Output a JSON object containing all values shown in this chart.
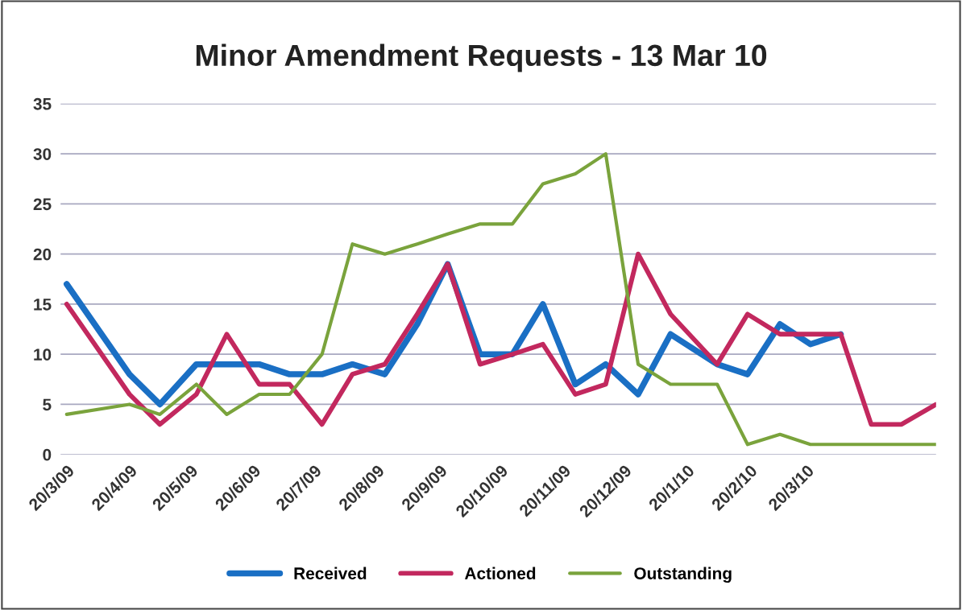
{
  "chart_data": {
    "type": "line",
    "title": "Minor Amendment Requests - 13 Mar 10",
    "x": [
      "2009-03-20",
      "2009-04-20",
      "2009-05-05",
      "2009-05-23",
      "2009-06-07",
      "2009-06-23",
      "2009-07-08",
      "2009-07-24",
      "2009-08-08",
      "2009-08-24",
      "2009-09-09",
      "2009-09-24",
      "2009-10-10",
      "2009-10-26",
      "2009-11-10",
      "2009-11-26",
      "2009-12-11",
      "2009-12-27",
      "2010-01-12",
      "2010-02-04",
      "2010-02-19",
      "2010-03-07",
      "2010-03-22",
      "2010-04-06",
      "2010-04-21",
      "2010-05-06",
      "2010-05-23"
    ],
    "series": [
      {
        "name": "Received",
        "color": "#1a6fc4",
        "values": [
          17,
          8,
          5,
          9,
          9,
          9,
          8,
          8,
          9,
          8,
          13,
          19,
          10,
          10,
          15,
          7,
          9,
          6,
          12,
          9,
          8,
          13,
          11,
          12,
          null,
          null,
          null
        ]
      },
      {
        "name": "Actioned",
        "color": "#c2285e",
        "values": [
          15,
          6,
          3,
          6,
          12,
          7,
          7,
          3,
          8,
          9,
          14,
          19,
          9,
          10,
          11,
          6,
          7,
          20,
          14,
          9,
          14,
          12,
          12,
          12,
          3,
          3,
          5
        ]
      },
      {
        "name": "Outstanding",
        "color": "#7aa33c",
        "values": [
          4,
          5,
          4,
          7,
          4,
          6,
          6,
          10,
          21,
          20,
          21,
          22,
          23,
          23,
          27,
          28,
          30,
          9,
          7,
          7,
          1,
          2,
          1,
          1,
          1,
          1,
          1
        ]
      }
    ],
    "xlim": [
      "2009-03-17",
      "2010-05-23"
    ],
    "xticks": [
      {
        "value": "2009-03-20",
        "label": "20/3/09"
      },
      {
        "value": "2009-04-20",
        "label": "20/4/09"
      },
      {
        "value": "2009-05-20",
        "label": "20/5/09"
      },
      {
        "value": "2009-06-20",
        "label": "20/6/09"
      },
      {
        "value": "2009-07-20",
        "label": "20/7/09"
      },
      {
        "value": "2009-08-20",
        "label": "20/8/09"
      },
      {
        "value": "2009-09-20",
        "label": "20/9/09"
      },
      {
        "value": "2009-10-20",
        "label": "20/10/09"
      },
      {
        "value": "2009-11-20",
        "label": "20/11/09"
      },
      {
        "value": "2009-12-20",
        "label": "20/12/09"
      },
      {
        "value": "2010-01-20",
        "label": "20/1/10"
      },
      {
        "value": "2010-02-20",
        "label": "20/2/10"
      },
      {
        "value": "2010-03-20",
        "label": "20/3/10"
      }
    ],
    "ylim": [
      0,
      35
    ],
    "yticks": [
      0,
      5,
      10,
      15,
      20,
      25,
      30,
      35
    ],
    "grid": "y",
    "legend": "bottom",
    "marker": "none",
    "line_style": "solid"
  }
}
